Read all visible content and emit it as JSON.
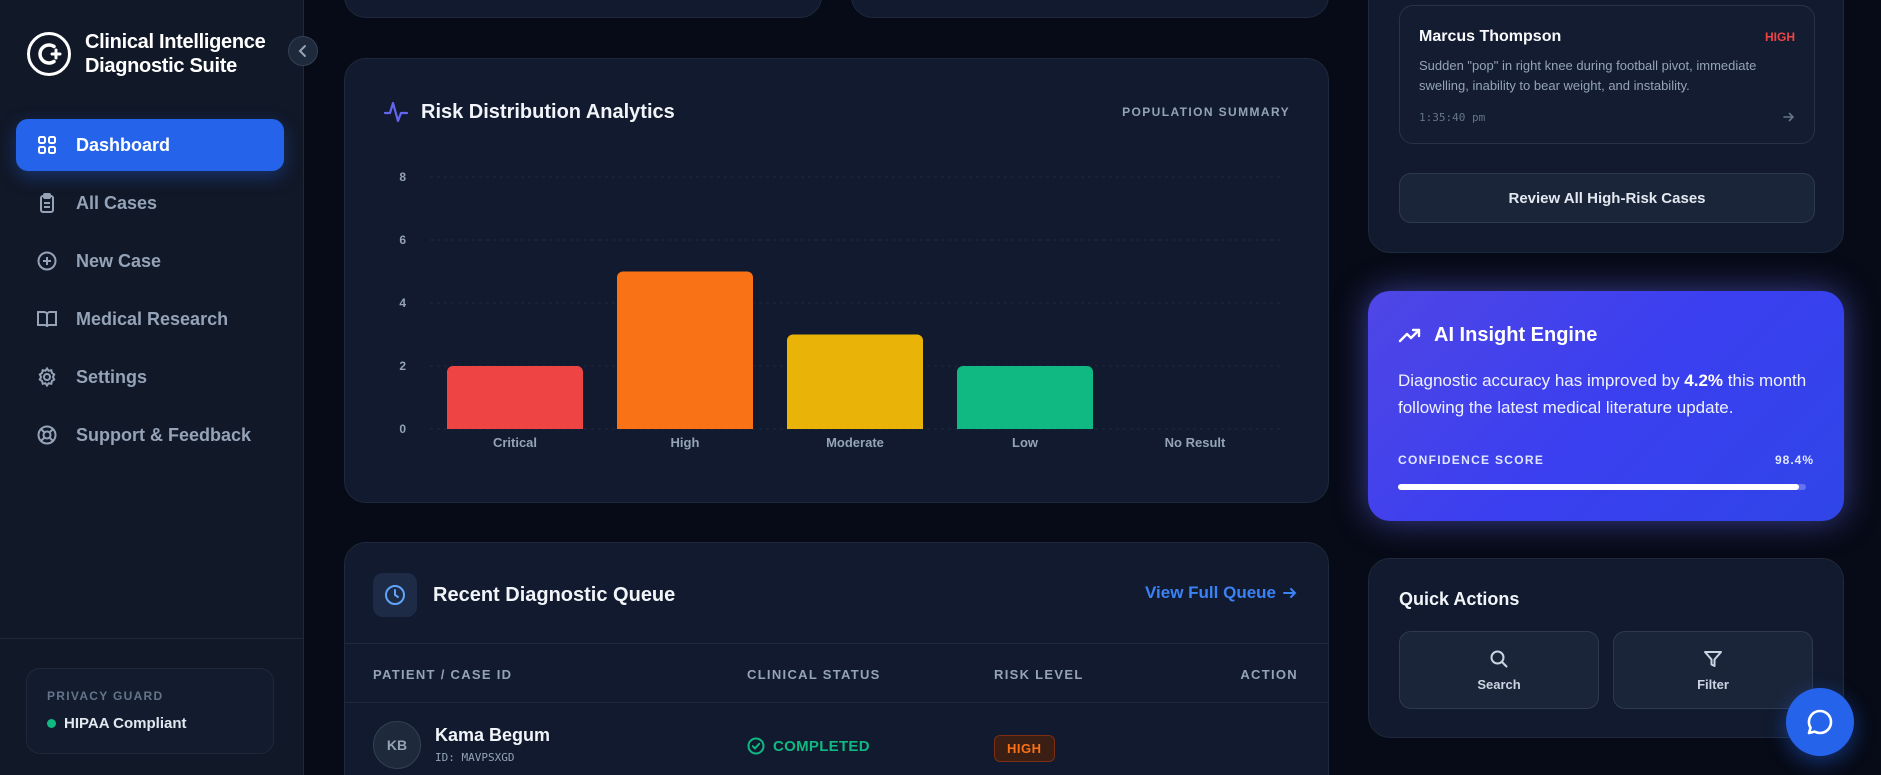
{
  "sidebar": {
    "brand_line1": "Clinical Intelligence",
    "brand_line2": "Diagnostic Suite",
    "items": [
      {
        "label": "Dashboard",
        "icon": "grid-icon",
        "active": true
      },
      {
        "label": "All Cases",
        "icon": "clipboard-icon",
        "active": false
      },
      {
        "label": "New Case",
        "icon": "plus-circle-icon",
        "active": false
      },
      {
        "label": "Medical Research",
        "icon": "book-icon",
        "active": false
      },
      {
        "label": "Settings",
        "icon": "gear-icon",
        "active": false
      },
      {
        "label": "Support & Feedback",
        "icon": "lifebuoy-icon",
        "active": false
      }
    ],
    "privacy": {
      "title": "PRIVACY GUARD",
      "status": "HIPAA Compliant"
    }
  },
  "risk_panel": {
    "title": "Risk Distribution Analytics",
    "badge": "POPULATION SUMMARY"
  },
  "chart_data": {
    "type": "bar",
    "categories": [
      "Critical",
      "High",
      "Moderate",
      "Low",
      "No Result"
    ],
    "values": [
      2,
      5,
      3,
      2,
      0
    ],
    "colors": [
      "#ef4444",
      "#f97316",
      "#eab308",
      "#10b981",
      "#64748b"
    ],
    "yticks": [
      0,
      2,
      4,
      6,
      8
    ],
    "ylim": [
      0,
      8
    ],
    "grid": true
  },
  "queue": {
    "title": "Recent Diagnostic Queue",
    "view_all": "View Full Queue",
    "columns": [
      "PATIENT / CASE ID",
      "CLINICAL STATUS",
      "RISK LEVEL",
      "ACTION"
    ],
    "rows": [
      {
        "initials": "KB",
        "name": "Kama Begum",
        "id": "ID: MAVPSXGD",
        "status": "COMPLETED",
        "risk": "HIGH"
      }
    ]
  },
  "high_risk": {
    "case": {
      "name": "Marcus Thompson",
      "level": "HIGH",
      "description": "Sudden \"pop\" in right knee during football pivot, immediate swelling, inability to bear weight, and instability.",
      "time": "1:35:40 pm"
    },
    "review_button": "Review All High-Risk Cases"
  },
  "ai_insight": {
    "title": "AI Insight Engine",
    "text_before": "Diagnostic accuracy has improved by ",
    "highlight": "4.2%",
    "text_after": " this month following the latest medical literature update.",
    "confidence_label": "CONFIDENCE SCORE",
    "confidence_value": "98.4%",
    "confidence_fraction": 0.984
  },
  "quick_actions": {
    "title": "Quick Actions",
    "search": "Search",
    "filter": "Filter"
  }
}
